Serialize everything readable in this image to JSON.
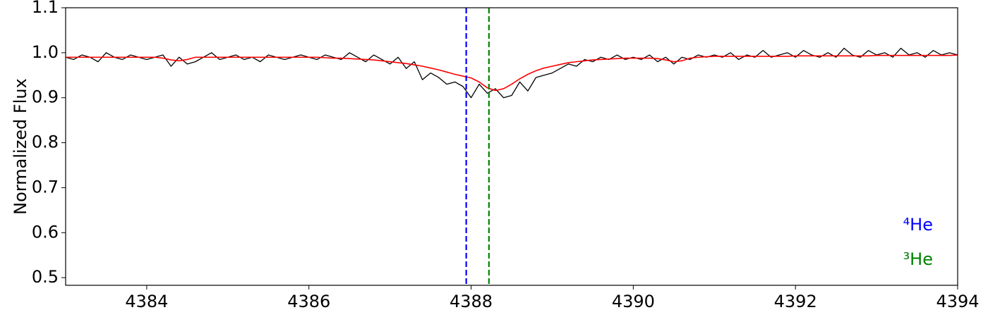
{
  "chart_data": {
    "type": "line",
    "ylabel": "Normalized Flux",
    "xlim": [
      4383,
      4394
    ],
    "ylim": [
      0.483,
      1.1
    ],
    "xticks": [
      4384,
      4386,
      4388,
      4390,
      4392,
      4394
    ],
    "yticks": [
      0.5,
      0.6,
      0.7,
      0.8,
      0.9,
      {
        "value": 1,
        "label": "1.0"
      },
      1.1
    ],
    "x": [
      4383.0,
      4383.1,
      4383.2,
      4383.3,
      4383.4,
      4383.5,
      4383.6,
      4383.7,
      4383.8,
      4383.9,
      4384.0,
      4384.1,
      4384.2,
      4384.3,
      4384.4,
      4384.5,
      4384.6,
      4384.7,
      4384.8,
      4384.9,
      4385.0,
      4385.1,
      4385.2,
      4385.3,
      4385.4,
      4385.5,
      4385.6,
      4385.7,
      4385.8,
      4385.9,
      4386.0,
      4386.1,
      4386.2,
      4386.3,
      4386.4,
      4386.5,
      4386.6,
      4386.7,
      4386.8,
      4386.9,
      4387.0,
      4387.1,
      4387.2,
      4387.3,
      4387.4,
      4387.5,
      4387.6,
      4387.7,
      4387.8,
      4387.9,
      4388.0,
      4388.1,
      4388.2,
      4388.3,
      4388.4,
      4388.5,
      4388.6,
      4388.7,
      4388.8,
      4388.9,
      4389.0,
      4389.1,
      4389.2,
      4389.3,
      4389.4,
      4389.5,
      4389.6,
      4389.7,
      4389.8,
      4389.9,
      4390.0,
      4390.1,
      4390.2,
      4390.3,
      4390.4,
      4390.5,
      4390.6,
      4390.7,
      4390.8,
      4390.9,
      4391.0,
      4391.1,
      4391.2,
      4391.3,
      4391.4,
      4391.5,
      4391.6,
      4391.7,
      4391.8,
      4391.9,
      4392.0,
      4392.1,
      4392.2,
      4392.3,
      4392.4,
      4392.5,
      4392.6,
      4392.7,
      4392.8,
      4392.9,
      4393.0,
      4393.1,
      4393.2,
      4393.3,
      4393.4,
      4393.5,
      4393.6,
      4393.7,
      4393.8,
      4393.9,
      4394.0
    ],
    "series": [
      {
        "color": "#000000",
        "width": 1.3,
        "values": [
          0.99,
          0.985,
          0.995,
          0.99,
          0.98,
          1.0,
          0.99,
          0.985,
          0.995,
          0.99,
          0.985,
          0.99,
          0.995,
          0.97,
          0.99,
          0.975,
          0.98,
          0.99,
          1.0,
          0.985,
          0.99,
          0.995,
          0.985,
          0.99,
          0.98,
          0.995,
          0.99,
          0.985,
          0.99,
          0.995,
          0.99,
          0.985,
          0.995,
          0.99,
          0.985,
          1.0,
          0.99,
          0.98,
          0.995,
          0.985,
          0.975,
          0.99,
          0.965,
          0.98,
          0.94,
          0.955,
          0.945,
          0.93,
          0.935,
          0.925,
          0.9,
          0.93,
          0.91,
          0.92,
          0.9,
          0.905,
          0.935,
          0.915,
          0.945,
          0.95,
          0.955,
          0.965,
          0.975,
          0.97,
          0.985,
          0.98,
          0.99,
          0.985,
          0.995,
          0.985,
          0.99,
          0.985,
          0.995,
          0.98,
          0.99,
          0.975,
          0.99,
          0.985,
          0.995,
          0.99,
          0.995,
          0.99,
          1.0,
          0.985,
          0.995,
          0.99,
          1.005,
          0.99,
          0.995,
          1.0,
          0.99,
          1.005,
          0.995,
          0.99,
          1.0,
          0.99,
          1.01,
          0.995,
          0.99,
          1.005,
          0.995,
          1.0,
          0.99,
          1.01,
          0.995,
          1.0,
          0.99,
          1.005,
          0.995,
          1.0,
          0.995
        ]
      },
      {
        "color": "#ff0000",
        "width": 1.6,
        "values": [
          0.99,
          0.99,
          0.99,
          0.99,
          0.99,
          0.99,
          0.99,
          0.99,
          0.99,
          0.99,
          0.99,
          0.99,
          0.988,
          0.984,
          0.982,
          0.985,
          0.99,
          0.99,
          0.99,
          0.99,
          0.99,
          0.99,
          0.99,
          0.99,
          0.99,
          0.99,
          0.99,
          0.99,
          0.99,
          0.99,
          0.99,
          0.99,
          0.989,
          0.988,
          0.988,
          0.987,
          0.986,
          0.985,
          0.984,
          0.982,
          0.98,
          0.978,
          0.976,
          0.973,
          0.97,
          0.966,
          0.962,
          0.957,
          0.952,
          0.948,
          0.944,
          0.935,
          0.922,
          0.916,
          0.92,
          0.93,
          0.942,
          0.952,
          0.96,
          0.966,
          0.97,
          0.974,
          0.978,
          0.98,
          0.982,
          0.984,
          0.985,
          0.986,
          0.987,
          0.988,
          0.988,
          0.988,
          0.988,
          0.987,
          0.984,
          0.98,
          0.982,
          0.988,
          0.99,
          0.991,
          0.992,
          0.992,
          0.992,
          0.992,
          0.992,
          0.992,
          0.992,
          0.992,
          0.992,
          0.992,
          0.993,
          0.993,
          0.993,
          0.993,
          0.993,
          0.993,
          0.993,
          0.993,
          0.993,
          0.993,
          0.994,
          0.994,
          0.994,
          0.994,
          0.994,
          0.994,
          0.994,
          0.994,
          0.994,
          0.994,
          0.995
        ]
      }
    ],
    "vlines": [
      {
        "x": 4387.94,
        "color": "#0000ff",
        "label": "⁴He"
      },
      {
        "x": 4388.22,
        "color": "#008000",
        "label": "³He"
      }
    ]
  }
}
